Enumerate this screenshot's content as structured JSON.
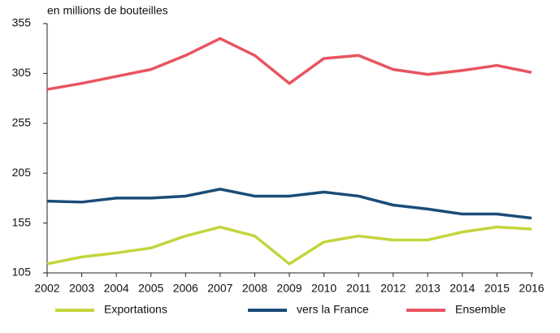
{
  "chart_data": {
    "type": "line",
    "y_axis_label": "en millions de bouteilles",
    "categories": [
      "2002",
      "2003",
      "2004",
      "2005",
      "2006",
      "2007",
      "2008",
      "2009",
      "2010",
      "2011",
      "2012",
      "2013",
      "2014",
      "2015",
      "2016"
    ],
    "series": [
      {
        "name": "Exportations",
        "color": "#c3d53b",
        "values": [
          114,
          121,
          125,
          130,
          142,
          151,
          142,
          114,
          136,
          142,
          138,
          138,
          146,
          151,
          149
        ]
      },
      {
        "name": "vers la France",
        "color": "#1a4c78",
        "values": [
          177,
          176,
          180,
          180,
          182,
          189,
          182,
          182,
          186,
          182,
          173,
          169,
          164,
          164,
          160
        ]
      },
      {
        "name": "Ensemble",
        "color": "#e8545f",
        "values": [
          289,
          295,
          302,
          309,
          323,
          340,
          323,
          295,
          320,
          323,
          309,
          304,
          308,
          313,
          306
        ]
      }
    ],
    "ylim": [
      105,
      355
    ],
    "yticks": [
      105,
      155,
      205,
      255,
      305,
      355
    ],
    "grid": false,
    "legend": "bottom"
  }
}
